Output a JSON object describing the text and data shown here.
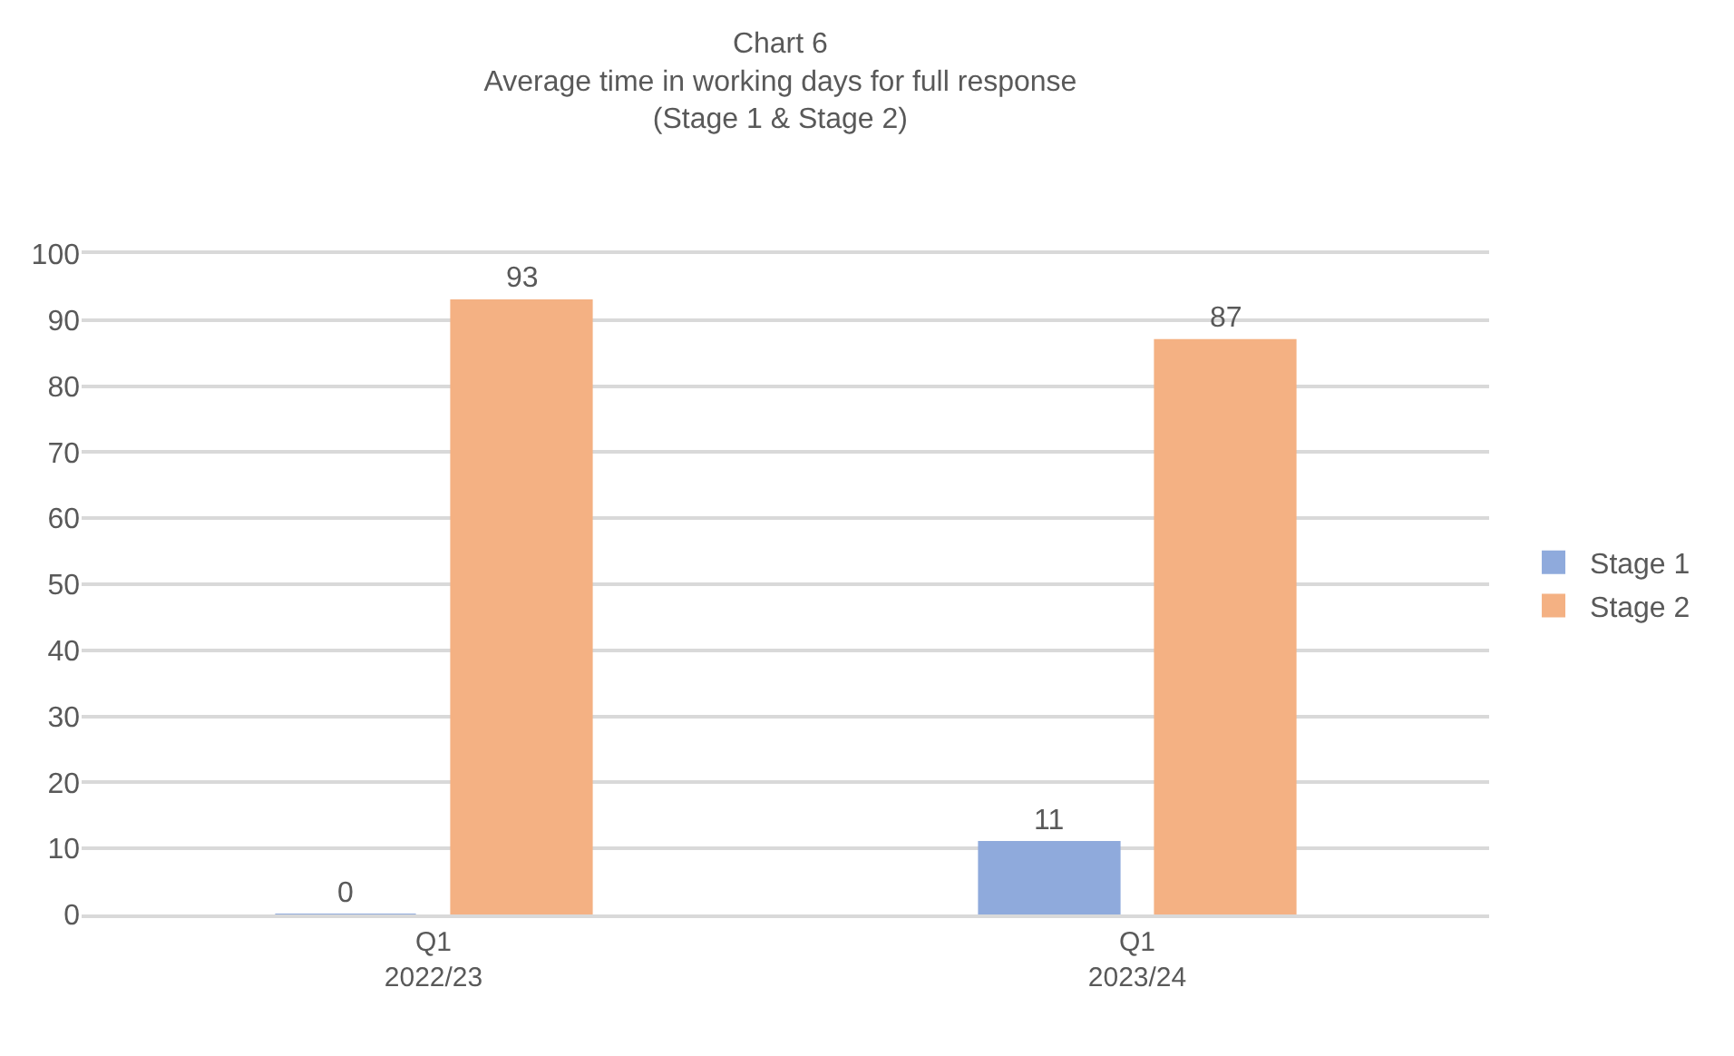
{
  "chart_data": {
    "type": "bar",
    "title": "Chart 6\nAverage time in working days for full response\n(Stage 1 & Stage 2)",
    "categories": [
      "Q1\n2022/23",
      "Q1\n2023/24"
    ],
    "series": [
      {
        "name": "Stage 1",
        "color": "#8faadc",
        "values": [
          0,
          11
        ]
      },
      {
        "name": "Stage 2",
        "color": "#f4b183",
        "values": [
          93,
          87
        ]
      }
    ],
    "ylim": [
      0,
      100
    ],
    "yticks": [
      0,
      10,
      20,
      30,
      40,
      50,
      60,
      70,
      80,
      90,
      100
    ],
    "grid": "y",
    "legend": "right",
    "data_labels": true
  }
}
